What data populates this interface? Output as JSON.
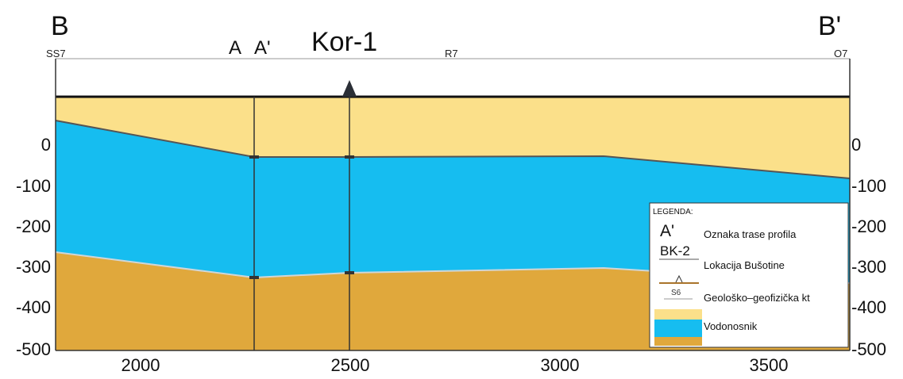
{
  "profile": {
    "start_label": "B",
    "end_label": "B'",
    "point_labels": [
      "SS7",
      "A",
      "A'",
      "Kor-1",
      "R7",
      "O7"
    ]
  },
  "axes": {
    "y_ticks_left": [
      "0",
      "-100",
      "-200",
      "-300",
      "-400",
      "-500"
    ],
    "y_ticks_right": [
      "0",
      "-100",
      "-200",
      "-300",
      "-400",
      "-500"
    ],
    "x_ticks": [
      "2000",
      "2500",
      "3000",
      "3500"
    ]
  },
  "legend": {
    "title": "LEGENDA:",
    "items": [
      {
        "symbol": "A'",
        "label": "Oznaka trase profila"
      },
      {
        "symbol": "BK-2",
        "label": "Lokacija Bušotine"
      },
      {
        "symbol": "S6",
        "label": "Geološko–geofizička kt"
      },
      {
        "symbol": "",
        "label": "Vodonosnik"
      }
    ]
  },
  "colors": {
    "top_layer": "#fbe08a",
    "aquifer": "#16bdf0",
    "bottom_layer": "#e0a83c",
    "line": "#222222"
  }
}
